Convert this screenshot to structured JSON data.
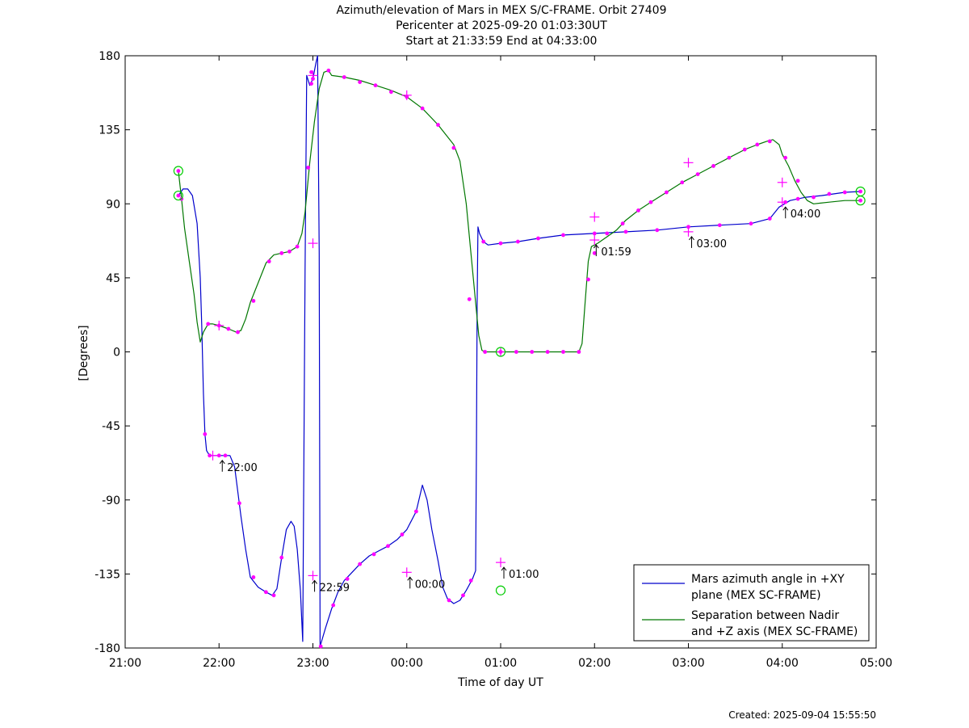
{
  "chart_data": {
    "type": "line",
    "title": [
      "Azimuth/elevation of Mars in MEX S/C-FRAME.  Orbit 27409",
      "Pericenter at 2025-09-20 01:03:30UT",
      "Start at 21:33:59 End at 04:33:00"
    ],
    "xlabel": "Time of day UT",
    "ylabel": "[Degrees]",
    "xlim": [
      0,
      480
    ],
    "ylim": [
      -180,
      180
    ],
    "x_ticks": [
      {
        "v": 0,
        "label": "21:00"
      },
      {
        "v": 60,
        "label": "22:00"
      },
      {
        "v": 120,
        "label": "23:00"
      },
      {
        "v": 180,
        "label": "00:00"
      },
      {
        "v": 240,
        "label": "01:00"
      },
      {
        "v": 300,
        "label": "02:00"
      },
      {
        "v": 360,
        "label": "03:00"
      },
      {
        "v": 420,
        "label": "04:00"
      },
      {
        "v": 480,
        "label": "05:00"
      }
    ],
    "y_ticks": [
      {
        "v": 180,
        "label": "180"
      },
      {
        "v": 135,
        "label": "135"
      },
      {
        "v": 90,
        "label": "90"
      },
      {
        "v": 45,
        "label": "45"
      },
      {
        "v": 0,
        "label": "0"
      },
      {
        "v": -45,
        "label": "-45"
      },
      {
        "v": -90,
        "label": "-90"
      },
      {
        "v": -135,
        "label": "-135"
      },
      {
        "v": -180,
        "label": "-180"
      }
    ],
    "legend_position": "bottom-right",
    "series": [
      {
        "name": "Mars azimuth angle in +XY plane (MEX SC-FRAME)",
        "legend_lines": [
          "Mars azimuth angle in +XY",
          "plane (MEX SC-FRAME)"
        ],
        "color": "#0000cc",
        "points": [
          [
            34,
            95
          ],
          [
            37,
            99
          ],
          [
            40,
            99
          ],
          [
            43,
            95
          ],
          [
            46,
            78
          ],
          [
            48,
            45
          ],
          [
            49,
            15
          ],
          [
            50,
            -25
          ],
          [
            51,
            -50
          ],
          [
            52,
            -60
          ],
          [
            54,
            -63
          ],
          [
            60,
            -63
          ],
          [
            64,
            -63
          ],
          [
            67,
            -63
          ],
          [
            70,
            -70
          ],
          [
            72,
            -85
          ],
          [
            74,
            -100
          ],
          [
            77,
            -120
          ],
          [
            80,
            -137
          ],
          [
            85,
            -143
          ],
          [
            90,
            -146
          ],
          [
            94,
            -148
          ],
          [
            97,
            -144
          ],
          [
            100,
            -125
          ],
          [
            103,
            -108
          ],
          [
            106,
            -103
          ],
          [
            108,
            -106
          ],
          [
            110,
            -120
          ],
          [
            112,
            -145
          ],
          [
            113.5,
            -176
          ],
          [
            115,
            50
          ],
          [
            116,
            168
          ],
          [
            117,
            165
          ],
          [
            118,
            162
          ],
          [
            120,
            166
          ],
          [
            122,
            176
          ],
          [
            123,
            180
          ],
          [
            124,
            60
          ],
          [
            124.6,
            -179
          ],
          [
            128,
            -168
          ],
          [
            132,
            -156
          ],
          [
            136,
            -146
          ],
          [
            140,
            -139
          ],
          [
            144,
            -135
          ],
          [
            150,
            -129
          ],
          [
            156,
            -124
          ],
          [
            162,
            -121
          ],
          [
            168,
            -118
          ],
          [
            174,
            -114
          ],
          [
            180,
            -108
          ],
          [
            186,
            -97
          ],
          [
            190,
            -81
          ],
          [
            193,
            -90
          ],
          [
            196,
            -108
          ],
          [
            200,
            -127
          ],
          [
            203,
            -143
          ],
          [
            206,
            -150
          ],
          [
            210,
            -153
          ],
          [
            214,
            -151
          ],
          [
            218,
            -145
          ],
          [
            222,
            -138
          ],
          [
            224,
            -133
          ],
          [
            224.5,
            -60
          ],
          [
            225,
            30
          ],
          [
            225.5,
            76
          ],
          [
            226.5,
            72
          ],
          [
            229,
            67
          ],
          [
            232,
            65
          ],
          [
            240,
            66
          ],
          [
            251,
            67
          ],
          [
            264,
            69
          ],
          [
            280,
            71
          ],
          [
            300,
            72
          ],
          [
            320,
            73
          ],
          [
            340,
            74
          ],
          [
            360,
            76
          ],
          [
            380,
            77
          ],
          [
            400,
            78
          ],
          [
            412,
            81
          ],
          [
            418,
            88
          ],
          [
            425,
            92
          ],
          [
            435,
            94
          ],
          [
            445,
            95
          ],
          [
            460,
            97
          ],
          [
            470,
            97.5
          ]
        ],
        "markers": [
          [
            34,
            95
          ],
          [
            51,
            -50
          ],
          [
            54,
            -63
          ],
          [
            60,
            -63
          ],
          [
            64,
            -63
          ],
          [
            73,
            -92
          ],
          [
            82,
            -137
          ],
          [
            90,
            -146
          ],
          [
            95,
            -148
          ],
          [
            100,
            -125
          ],
          [
            119,
            163
          ],
          [
            120,
            166
          ],
          [
            125,
            -179
          ],
          [
            133,
            -154
          ],
          [
            142,
            -138
          ],
          [
            150,
            -129
          ],
          [
            159,
            -123
          ],
          [
            168,
            -118
          ],
          [
            177,
            -111
          ],
          [
            186,
            -97
          ],
          [
            207,
            -151
          ],
          [
            216,
            -148
          ],
          [
            221,
            -139
          ],
          [
            229,
            67
          ],
          [
            240,
            66
          ],
          [
            251,
            67
          ],
          [
            264,
            69
          ],
          [
            280,
            71
          ],
          [
            300,
            72
          ],
          [
            320,
            73
          ],
          [
            340,
            74
          ],
          [
            360,
            76
          ],
          [
            380,
            77
          ],
          [
            400,
            78
          ],
          [
            412,
            81
          ],
          [
            422,
            91
          ],
          [
            430,
            93
          ],
          [
            440,
            94
          ],
          [
            450,
            96
          ],
          [
            460,
            97
          ],
          [
            470,
            97.5
          ]
        ],
        "crosses": [
          [
            56,
            -63
          ],
          [
            120,
            -136
          ],
          [
            180,
            -134
          ],
          [
            240,
            -128
          ],
          [
            300,
            68
          ],
          [
            360,
            73
          ],
          [
            420,
            91
          ]
        ]
      },
      {
        "name": "Separation between Nadir and +Z axis (MEX SC-FRAME)",
        "legend_lines": [
          "Separation between Nadir",
          "and +Z axis (MEX SC-FRAME)"
        ],
        "color": "#007700",
        "points": [
          [
            34,
            110
          ],
          [
            36,
            93
          ],
          [
            38,
            75
          ],
          [
            41,
            55
          ],
          [
            44,
            35
          ],
          [
            46,
            18
          ],
          [
            48,
            6
          ],
          [
            50,
            12
          ],
          [
            53,
            17
          ],
          [
            56,
            17
          ],
          [
            60,
            16
          ],
          [
            66,
            14
          ],
          [
            71,
            12
          ],
          [
            74,
            13
          ],
          [
            77,
            20
          ],
          [
            80,
            30
          ],
          [
            85,
            42
          ],
          [
            90,
            54
          ],
          [
            95,
            59
          ],
          [
            100,
            60
          ],
          [
            105,
            61
          ],
          [
            110,
            64
          ],
          [
            113,
            72
          ],
          [
            115,
            85
          ],
          [
            118,
            115
          ],
          [
            121,
            140
          ],
          [
            124,
            160
          ],
          [
            127,
            170
          ],
          [
            130,
            171
          ],
          [
            132,
            168
          ],
          [
            140,
            167
          ],
          [
            150,
            165
          ],
          [
            160,
            162
          ],
          [
            170,
            159
          ],
          [
            180,
            155
          ],
          [
            190,
            148
          ],
          [
            200,
            138
          ],
          [
            210,
            126
          ],
          [
            214,
            116
          ],
          [
            218,
            90
          ],
          [
            221,
            60
          ],
          [
            224,
            30
          ],
          [
            226,
            10
          ],
          [
            228,
            1
          ],
          [
            230,
            0
          ],
          [
            290,
            0
          ],
          [
            292,
            5
          ],
          [
            294,
            30
          ],
          [
            296,
            55
          ],
          [
            298,
            64
          ],
          [
            302,
            66
          ],
          [
            308,
            70
          ],
          [
            314,
            74
          ],
          [
            320,
            80
          ],
          [
            328,
            86
          ],
          [
            336,
            91
          ],
          [
            346,
            97
          ],
          [
            356,
            103
          ],
          [
            366,
            108
          ],
          [
            376,
            113
          ],
          [
            386,
            118
          ],
          [
            396,
            123
          ],
          [
            404,
            126
          ],
          [
            410,
            128
          ],
          [
            414,
            129
          ],
          [
            418,
            126
          ],
          [
            420,
            120
          ],
          [
            424,
            113
          ],
          [
            428,
            104
          ],
          [
            432,
            97
          ],
          [
            436,
            92
          ],
          [
            440,
            90
          ],
          [
            450,
            91
          ],
          [
            460,
            92
          ],
          [
            470,
            92
          ]
        ],
        "markers": [
          [
            34,
            110
          ],
          [
            36,
            93
          ],
          [
            53,
            17
          ],
          [
            60,
            16
          ],
          [
            66,
            14
          ],
          [
            72,
            12
          ],
          [
            82,
            31
          ],
          [
            92,
            55
          ],
          [
            100,
            60
          ],
          [
            105,
            61
          ],
          [
            110,
            64
          ],
          [
            117,
            112
          ],
          [
            119,
            170
          ],
          [
            130,
            171
          ],
          [
            140,
            167
          ],
          [
            150,
            164
          ],
          [
            160,
            162
          ],
          [
            170,
            158
          ],
          [
            180,
            155
          ],
          [
            190,
            148
          ],
          [
            200,
            138
          ],
          [
            210,
            124
          ],
          [
            220,
            32
          ],
          [
            230,
            0
          ],
          [
            240,
            0
          ],
          [
            250,
            0
          ],
          [
            260,
            0
          ],
          [
            270,
            0
          ],
          [
            280,
            0
          ],
          [
            290,
            0
          ],
          [
            296,
            44
          ],
          [
            300,
            60
          ],
          [
            308,
            72
          ],
          [
            318,
            78
          ],
          [
            328,
            86
          ],
          [
            336,
            91
          ],
          [
            346,
            97
          ],
          [
            356,
            103
          ],
          [
            366,
            108
          ],
          [
            376,
            113
          ],
          [
            386,
            118
          ],
          [
            396,
            123
          ],
          [
            404,
            126
          ],
          [
            412,
            128
          ],
          [
            422,
            118
          ],
          [
            430,
            104
          ],
          [
            470,
            92
          ]
        ],
        "crosses": [
          [
            120,
            168
          ],
          [
            180,
            156
          ],
          [
            240,
            0
          ],
          [
            300,
            82
          ],
          [
            360,
            115
          ],
          [
            420,
            103
          ],
          [
            120,
            66
          ],
          [
            60,
            16
          ]
        ]
      }
    ],
    "circles": [
      [
        34,
        110
      ],
      [
        34,
        95
      ],
      [
        240,
        0
      ],
      [
        240,
        -145
      ],
      [
        470,
        97.5
      ],
      [
        470,
        92
      ]
    ],
    "time_annotations": [
      {
        "x": 60,
        "y": -63,
        "label": "22:00"
      },
      {
        "x": 119,
        "y": -136,
        "label": "22:59"
      },
      {
        "x": 180,
        "y": -134,
        "label": "00:00"
      },
      {
        "x": 240,
        "y": -128,
        "label": "01:00"
      },
      {
        "x": 299,
        "y": 68,
        "label": "01:59"
      },
      {
        "x": 360,
        "y": 73,
        "label": "03:00"
      },
      {
        "x": 420,
        "y": 91,
        "label": "04:00"
      }
    ],
    "footer": "Created: 2025-09-04 15:55:50"
  }
}
